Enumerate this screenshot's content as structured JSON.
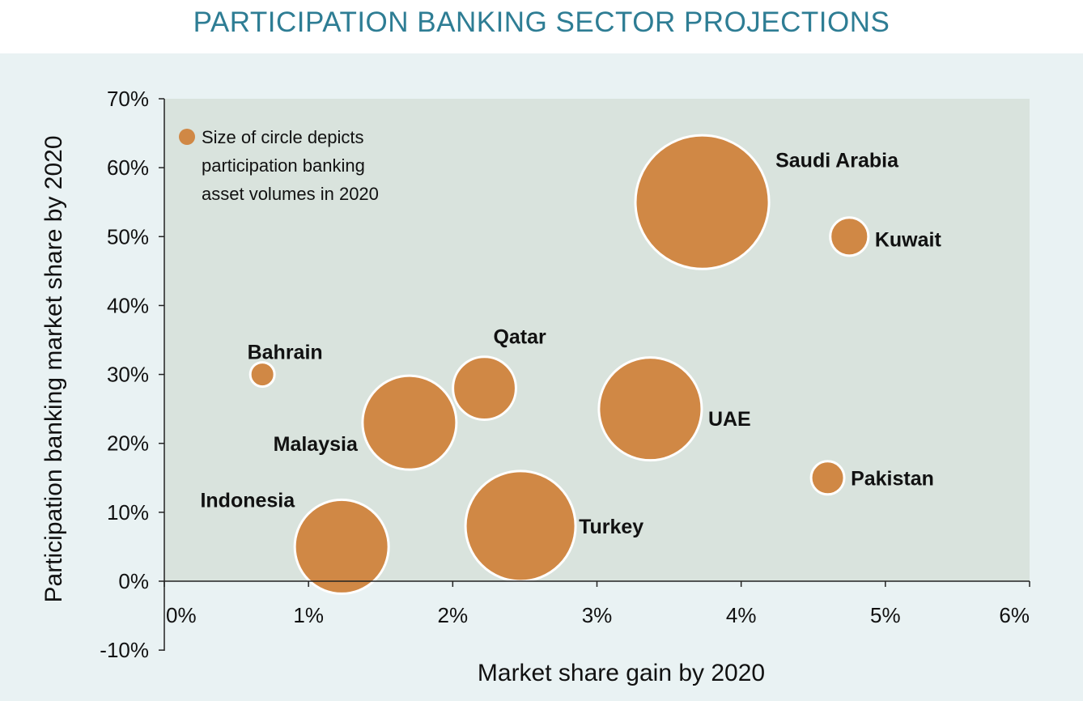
{
  "chart_data": {
    "type": "scatter",
    "title": "PARTICIPATION BANKING SECTOR PROJECTIONS",
    "xlabel": "Market share gain by 2020",
    "ylabel": "Participation banking market share by 2020",
    "xlim": [
      0,
      6
    ],
    "ylim": [
      -10,
      70
    ],
    "xticks": [
      {
        "value": 0,
        "label": "0%"
      },
      {
        "value": 1,
        "label": "1%"
      },
      {
        "value": 2,
        "label": "2%"
      },
      {
        "value": 3,
        "label": "3%"
      },
      {
        "value": 4,
        "label": "4%"
      },
      {
        "value": 5,
        "label": "5%"
      },
      {
        "value": 6,
        "label": "6%"
      }
    ],
    "yticks": [
      {
        "value": 70,
        "label": "70%"
      },
      {
        "value": 60,
        "label": "60%"
      },
      {
        "value": 50,
        "label": "50%"
      },
      {
        "value": 40,
        "label": "40%"
      },
      {
        "value": 30,
        "label": "30%"
      },
      {
        "value": 20,
        "label": "20%"
      },
      {
        "value": 10,
        "label": "10%"
      },
      {
        "value": 0,
        "label": "0%"
      },
      {
        "value": -10,
        "label": "-10%"
      }
    ],
    "grid": false,
    "bubble_color": "#d08845",
    "plot_background": "#d9e3dd",
    "page_background": "#e9f2f3",
    "title_color": "#2e7d94",
    "size_note": [
      "Size of circle depicts",
      "participation banking",
      "asset volumes in 2020"
    ],
    "points": [
      {
        "name": "Saudi Arabia",
        "x": 3.73,
        "y": 55,
        "size": 8.1
      },
      {
        "name": "Kuwait",
        "x": 4.75,
        "y": 50,
        "size": 0.66
      },
      {
        "name": "Bahrain",
        "x": 0.68,
        "y": 30,
        "size": 0.1
      },
      {
        "name": "Qatar",
        "x": 2.22,
        "y": 28,
        "size": 1.8
      },
      {
        "name": "UAE",
        "x": 3.37,
        "y": 25,
        "size": 4.8
      },
      {
        "name": "Malaysia",
        "x": 1.7,
        "y": 23,
        "size": 4.0
      },
      {
        "name": "Pakistan",
        "x": 4.6,
        "y": 15,
        "size": 0.5
      },
      {
        "name": "Indonesia",
        "x": 1.23,
        "y": 5,
        "size": 4.0
      },
      {
        "name": "Turkey",
        "x": 2.47,
        "y": 8,
        "size": 5.5
      }
    ]
  }
}
